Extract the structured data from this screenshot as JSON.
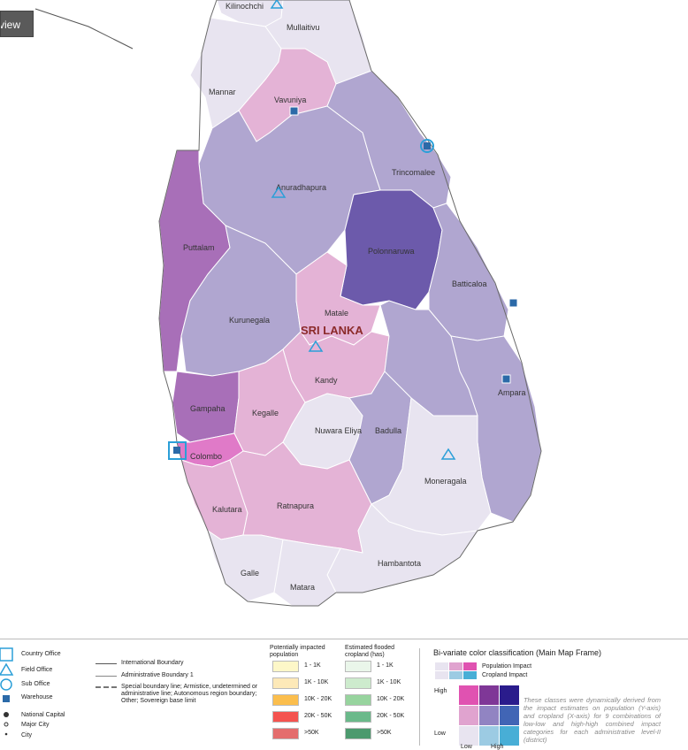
{
  "overview_tab": "rview",
  "country_label": "SRI LANKA",
  "districts": [
    {
      "name": "Kilinochchi"
    },
    {
      "name": "Mullaitivu"
    },
    {
      "name": "Mannar"
    },
    {
      "name": "Vavuniya"
    },
    {
      "name": "Trincomalee"
    },
    {
      "name": "Anuradhapura"
    },
    {
      "name": "Puttalam"
    },
    {
      "name": "Polonnaruwa"
    },
    {
      "name": "Batticaloa"
    },
    {
      "name": "Kurunegala"
    },
    {
      "name": "Matale"
    },
    {
      "name": "Kandy"
    },
    {
      "name": "Ampara"
    },
    {
      "name": "Gampaha"
    },
    {
      "name": "Kegalle"
    },
    {
      "name": "Nuwara Eliya"
    },
    {
      "name": "Badulla"
    },
    {
      "name": "Colombo"
    },
    {
      "name": "Moneragala"
    },
    {
      "name": "Kalutara"
    },
    {
      "name": "Ratnapura"
    },
    {
      "name": "Hambantota"
    },
    {
      "name": "Galle"
    },
    {
      "name": "Matara"
    }
  ],
  "colors": {
    "low_low": "#e8e4f0",
    "low_mid": "#e4b3d6",
    "mid_low": "#b0a6d0",
    "mid_mid": "#a86fb8",
    "high": "#6c5aab",
    "pink_high": "#e07ac8",
    "sea": "#ffffff",
    "office_icon": "#2b9fd8"
  },
  "legend": {
    "office_types": [
      "Country Office",
      "Field Office",
      "Sub Office",
      "Warehouse"
    ],
    "boundaries": [
      "International Boundary",
      "Administrative Boundary 1",
      "Special boundary line; Armistice, undetermined or administrative line; Autonomous region boundary; Other; Sovereign base limit"
    ],
    "places": [
      "National Capital",
      "Major City",
      "City"
    ],
    "population": {
      "title": "Potentially impacted population",
      "classes": [
        "1 - 1K",
        "1K - 10K",
        "10K - 20K",
        "20K - 50K",
        ">50K"
      ],
      "colors": [
        "#fdf7c8",
        "#fde9b8",
        "#fbbe4d",
        "#f4534f",
        "#e46d6d"
      ]
    },
    "cropland": {
      "title": "Estimated flooded cropland (has)",
      "classes": [
        "1 - 1K",
        "1K - 10K",
        "10K - 20K",
        "20K - 50K",
        ">50K"
      ],
      "colors": [
        "#eaf6ea",
        "#cdebcd",
        "#97d49e",
        "#6ab98a",
        "#4c9a6e"
      ]
    },
    "bivariate": {
      "title": "Bi-variate color classification (Main Map Frame)",
      "population_label": "Population Impact",
      "cropland_label": "Cropland Impact",
      "high_label": "High",
      "low_label": "Low",
      "x_low": "Low",
      "x_high": "High",
      "population_colors": [
        "#e8e4f0",
        "#e0a3cf",
        "#e052b1"
      ],
      "cropland_colors": [
        "#e8e4f0",
        "#9ccbe3",
        "#48aed6"
      ],
      "grid": [
        [
          "#e052b1",
          "#7f3797",
          "#2a1c8c"
        ],
        [
          "#e0a3cf",
          "#9184c2",
          "#4165b5"
        ],
        [
          "#e8e4f0",
          "#9ccbe3",
          "#48aed6"
        ]
      ],
      "description": "These classes were dynamically derived from the impact estimates on population (Y-axis) and cropland (X-axis) for 9 combinations of low-low and high-high combined impact categories for each administrative level-II (district)"
    }
  }
}
